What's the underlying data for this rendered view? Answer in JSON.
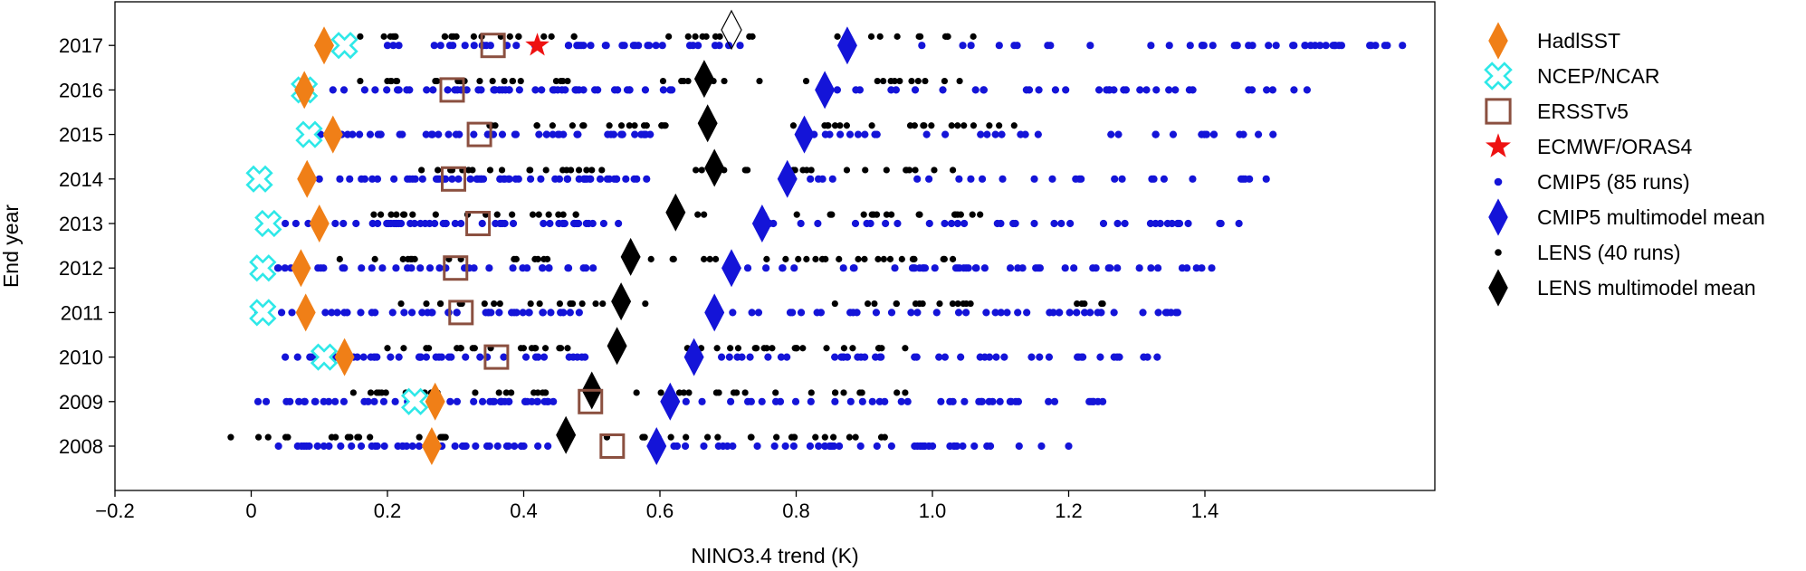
{
  "chart_data": {
    "type": "scatter",
    "xlabel": "NINO3.4 trend (K)",
    "ylabel": "End year",
    "xlim": [
      -0.2,
      1.73
    ],
    "ylim": [
      2007,
      2018
    ],
    "xticks": [
      -0.2,
      0,
      0.2,
      0.4,
      0.6,
      0.8,
      1.0,
      1.2,
      1.4
    ],
    "xtick_labels": [
      "−0.2",
      "0",
      "0.2",
      "0.4",
      "0.6",
      "0.8",
      "1.0",
      "1.2",
      "1.4"
    ],
    "yticks": [
      2008,
      2009,
      2010,
      2011,
      2012,
      2013,
      2014,
      2015,
      2016,
      2017
    ],
    "grid": false,
    "legend_position": "outside-right",
    "series": [
      {
        "name": "HadlSST",
        "marker": "diamond",
        "color": "#f07f17",
        "points": [
          [
            0.265,
            2008
          ],
          [
            0.27,
            2009
          ],
          [
            0.137,
            2010
          ],
          [
            0.08,
            2011
          ],
          [
            0.073,
            2012
          ],
          [
            0.1,
            2013
          ],
          [
            0.082,
            2014
          ],
          [
            0.12,
            2015
          ],
          [
            0.078,
            2016
          ],
          [
            0.107,
            2017
          ]
        ]
      },
      {
        "name": "NCEP/NCAR",
        "marker": "cross",
        "color": "#2ee8e8",
        "points": [
          [
            0.24,
            2009
          ],
          [
            0.107,
            2010
          ],
          [
            0.017,
            2011
          ],
          [
            0.017,
            2012
          ],
          [
            0.025,
            2013
          ],
          [
            0.012,
            2014
          ],
          [
            0.085,
            2015
          ],
          [
            0.078,
            2016
          ],
          [
            0.137,
            2017
          ]
        ]
      },
      {
        "name": "ERSSTv5",
        "marker": "square",
        "color": "#8b5040",
        "points": [
          [
            0.53,
            2008
          ],
          [
            0.498,
            2009
          ],
          [
            0.36,
            2010
          ],
          [
            0.308,
            2011
          ],
          [
            0.3,
            2012
          ],
          [
            0.333,
            2013
          ],
          [
            0.297,
            2014
          ],
          [
            0.335,
            2015
          ],
          [
            0.295,
            2016
          ],
          [
            0.355,
            2017
          ]
        ]
      },
      {
        "name": "ECMWF/ORAS4",
        "marker": "star",
        "color": "#ee1111",
        "points": [
          [
            0.42,
            2017
          ]
        ]
      },
      {
        "name": "CMIP5 (85 runs)",
        "marker": "dot-large",
        "color": "#1414d8",
        "generated": true,
        "ranges": [
          [
            0.04,
            1.2,
            2008
          ],
          [
            0.01,
            1.25,
            2009
          ],
          [
            0.05,
            1.33,
            2010
          ],
          [
            0.01,
            1.36,
            2011
          ],
          [
            0.02,
            1.41,
            2012
          ],
          [
            0.05,
            1.45,
            2013
          ],
          [
            0.1,
            1.49,
            2014
          ],
          [
            0.1,
            1.5,
            2015
          ],
          [
            0.12,
            1.55,
            2016
          ],
          [
            0.2,
            1.69,
            2017
          ]
        ]
      },
      {
        "name": "CMIP5 multimodel mean",
        "marker": "diamond",
        "color": "#1414d8",
        "points": [
          [
            0.595,
            2008
          ],
          [
            0.615,
            2009
          ],
          [
            0.65,
            2010
          ],
          [
            0.68,
            2011
          ],
          [
            0.705,
            2012
          ],
          [
            0.75,
            2013
          ],
          [
            0.787,
            2014
          ],
          [
            0.812,
            2015
          ],
          [
            0.842,
            2016
          ],
          [
            0.875,
            2017
          ]
        ]
      },
      {
        "name": "LENS (40 runs)",
        "marker": "dot-small",
        "color": "#000000",
        "generated": true,
        "ranges": [
          [
            -0.03,
            0.93,
            2008
          ],
          [
            0.15,
            0.96,
            2009
          ],
          [
            0.2,
            0.96,
            2010
          ],
          [
            0.22,
            1.25,
            2011
          ],
          [
            0.13,
            1.03,
            2012
          ],
          [
            0.18,
            1.07,
            2013
          ],
          [
            0.25,
            1.03,
            2014
          ],
          [
            0.35,
            1.12,
            2015
          ],
          [
            0.16,
            1.04,
            2016
          ],
          [
            0.16,
            1.06,
            2017
          ]
        ]
      },
      {
        "name": "LENS multimodel mean",
        "marker": "diamond",
        "color": "#000000",
        "points": [
          [
            0.462,
            2008
          ],
          [
            0.5,
            2009
          ],
          [
            0.537,
            2010
          ],
          [
            0.543,
            2011
          ],
          [
            0.557,
            2012
          ],
          [
            0.623,
            2013
          ],
          [
            0.68,
            2014
          ],
          [
            0.67,
            2015
          ],
          [
            0.665,
            2016
          ]
        ]
      }
    ],
    "annotations": [
      {
        "marker": "diamond-outline",
        "color": "#000000",
        "x": 0.705,
        "y": 2017.35
      }
    ]
  },
  "legend": {
    "items": [
      {
        "label": "HadlSST",
        "marker": "diamond",
        "color": "#f07f17"
      },
      {
        "label": "NCEP/NCAR",
        "marker": "cross",
        "color": "#2ee8e8"
      },
      {
        "label": "ERSSTv5",
        "marker": "square",
        "color": "#8b5040"
      },
      {
        "label": "ECMWF/ORAS4",
        "marker": "star",
        "color": "#ee1111"
      },
      {
        "label": "CMIP5 (85 runs)",
        "marker": "dot-large",
        "color": "#1414d8"
      },
      {
        "label": "CMIP5 multimodel mean",
        "marker": "diamond",
        "color": "#1414d8"
      },
      {
        "label": "LENS (40 runs)",
        "marker": "dot-small",
        "color": "#000000"
      },
      {
        "label": "LENS multimodel mean",
        "marker": "diamond",
        "color": "#000000"
      }
    ]
  }
}
